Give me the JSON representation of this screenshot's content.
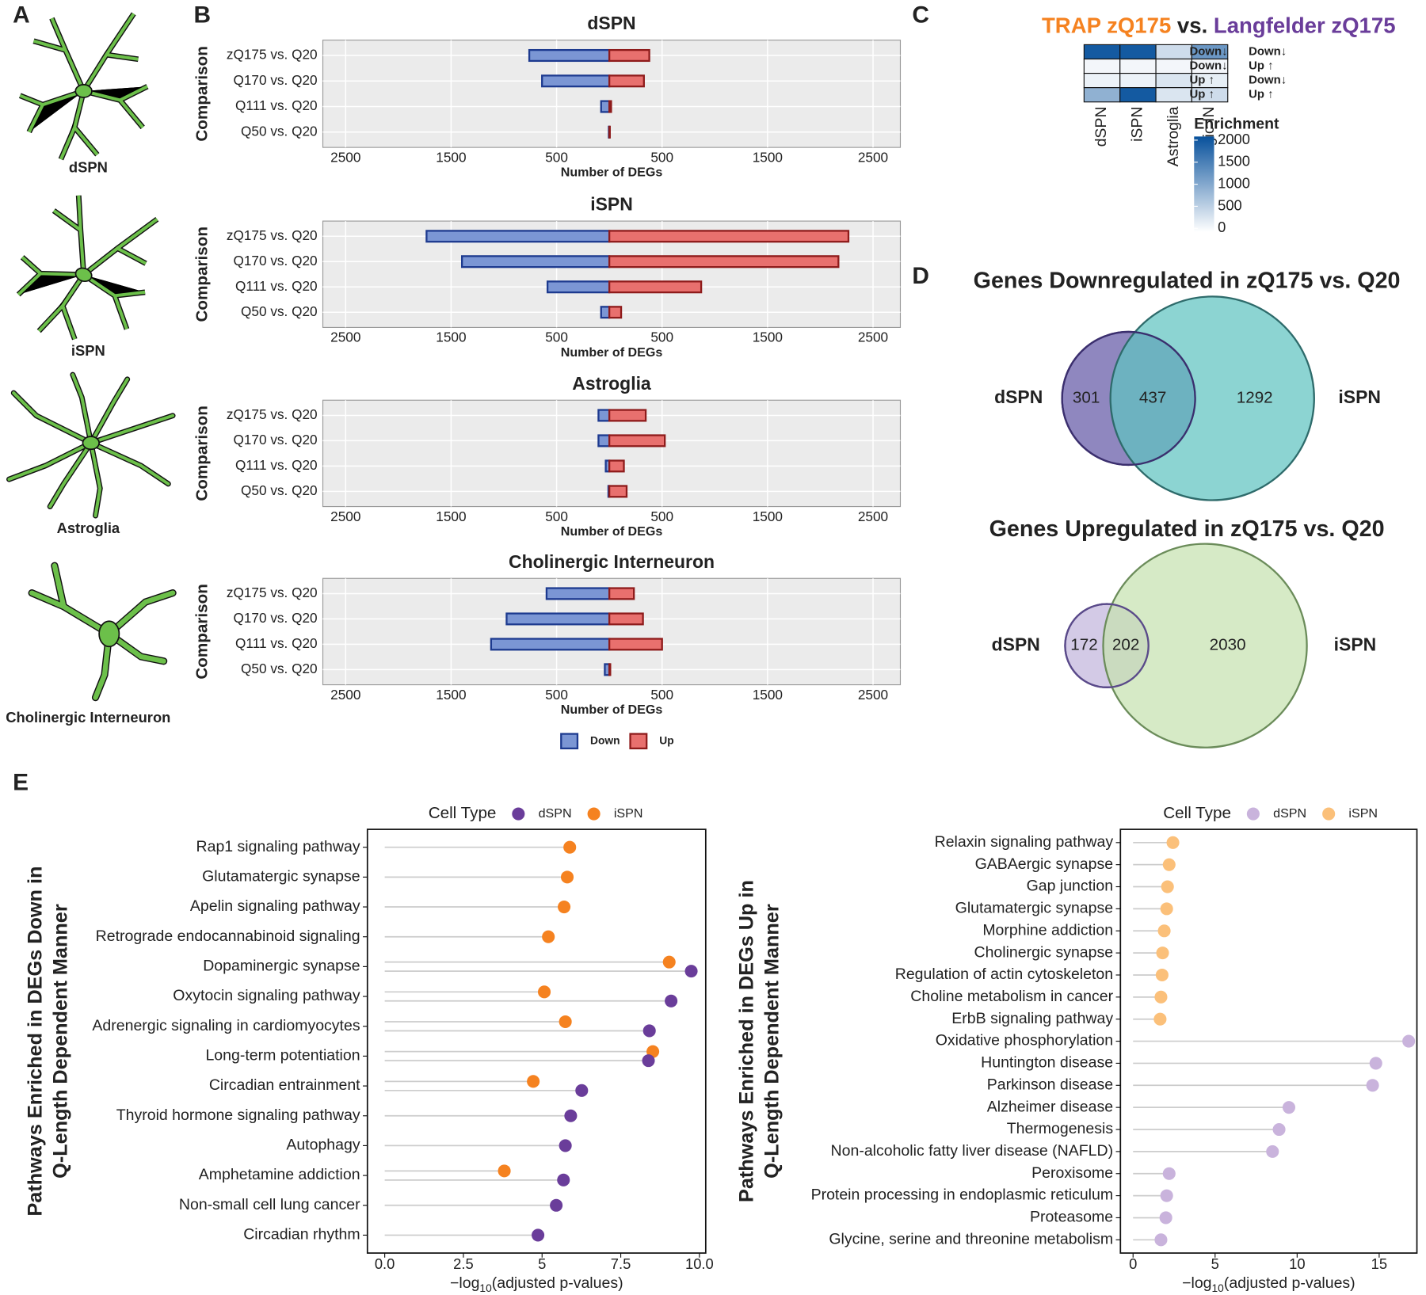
{
  "panel_letters": [
    "A",
    "B",
    "C",
    "D",
    "E"
  ],
  "cell_drawings": {
    "labels": [
      "dSPN",
      "iSPN",
      "Astroglia",
      "Cholinergic Interneuron"
    ]
  },
  "chart_data": [
    {
      "type": "bar",
      "orientation": "horizontal",
      "title": "dSPN",
      "ylabel": "Comparison",
      "xlabel": "Number of DEGs",
      "categories": [
        "zQ175 vs. Q20",
        "Q170 vs. Q20",
        "Q111 vs. Q20",
        "Q50 vs. Q20"
      ],
      "series": [
        {
          "color": "#7b96d4",
          "edge": "#1d3a8f",
          "values": [
            -759,
            -638,
            -78,
            -5
          ]
        },
        {
          "color": "#e8706e",
          "edge": "#8e1b1b",
          "values": [
            379,
            328,
            17,
            5
          ]
        }
      ],
      "xlim": [
        -2716,
        2759
      ],
      "xticks": [
        {
          "value": -2500,
          "label": "2500"
        },
        {
          "value": -1500,
          "label": "1500"
        },
        {
          "value": -500,
          "label": "500"
        },
        500,
        1500,
        2500
      ]
    },
    {
      "type": "bar",
      "orientation": "horizontal",
      "title": "iSPN",
      "ylabel": "Comparison",
      "xlabel": "Number of DEGs",
      "categories": [
        "zQ175 vs. Q20",
        "Q170 vs. Q20",
        "Q111 vs. Q20",
        "Q50 vs. Q20"
      ],
      "series": [
        {
          "color": "#7b96d4",
          "edge": "#1d3a8f",
          "values": [
            -1733,
            -1397,
            -586,
            -78
          ]
        },
        {
          "color": "#e8706e",
          "edge": "#8e1b1b",
          "values": [
            2267,
            2172,
            871,
            112
          ]
        }
      ],
      "xlim": [
        -2716,
        2759
      ],
      "xticks": [
        {
          "value": -2500,
          "label": "2500"
        },
        {
          "value": -1500,
          "label": "1500"
        },
        {
          "value": -500,
          "label": "500"
        },
        500,
        1500,
        2500
      ]
    },
    {
      "type": "bar",
      "orientation": "horizontal",
      "title": "Astroglia",
      "ylabel": "Comparison",
      "xlabel": "Number of DEGs",
      "categories": [
        "zQ175 vs. Q20",
        "Q170 vs. Q20",
        "Q111 vs. Q20",
        "Q50 vs. Q20"
      ],
      "series": [
        {
          "color": "#7b96d4",
          "edge": "#1d3a8f",
          "values": [
            -103,
            -103,
            -34,
            -9
          ]
        },
        {
          "color": "#e8706e",
          "edge": "#8e1b1b",
          "values": [
            345,
            526,
            138,
            164
          ]
        }
      ],
      "xlim": [
        -2716,
        2759
      ],
      "xticks": [
        {
          "value": -2500,
          "label": "2500"
        },
        {
          "value": -1500,
          "label": "1500"
        },
        {
          "value": -500,
          "label": "500"
        },
        500,
        1500,
        2500
      ]
    },
    {
      "type": "bar",
      "orientation": "horizontal",
      "title": "Cholinergic Interneuron",
      "ylabel": "Comparison",
      "xlabel": "Number of DEGs",
      "categories": [
        "zQ175 vs. Q20",
        "Q170 vs. Q20",
        "Q111 vs. Q20",
        "Q50 vs. Q20"
      ],
      "series": [
        {
          "name": "Down",
          "color": "#7b96d4",
          "edge": "#1d3a8f",
          "values": [
            -595,
            -974,
            -1121,
            -43
          ]
        },
        {
          "name": "Up",
          "color": "#e8706e",
          "edge": "#8e1b1b",
          "values": [
            233,
            319,
            500,
            9
          ]
        }
      ],
      "xlim": [
        -2716,
        2759
      ],
      "xticks": [
        {
          "value": -2500,
          "label": "2500"
        },
        {
          "value": -1500,
          "label": "1500"
        },
        {
          "value": -500,
          "label": "500"
        },
        500,
        1500,
        2500
      ]
    },
    {
      "type": "heatmap",
      "title_parts": [
        {
          "text": "TRAP zQ175",
          "color": "#f58220"
        },
        {
          "text": " vs. ",
          "color": "#222222"
        },
        {
          "text": "Langfelder zQ175",
          "color": "#6a3d9a"
        }
      ],
      "row_labels_left": [
        "Down↓",
        "Down↓",
        "Up ↑",
        "Up ↑"
      ],
      "row_left_color": "#f58220",
      "row_labels_right": [
        "Down↓",
        "Up ↑",
        "Down↓",
        "Up ↑"
      ],
      "row_right_color": "#6a3d9a",
      "columns": [
        "dSPN",
        "iSPN",
        "Astroglia",
        "Cholinergic IN"
      ],
      "values": [
        [
          1900,
          1900,
          400,
          1200
        ],
        [
          100,
          100,
          100,
          100
        ],
        [
          150,
          150,
          300,
          200
        ],
        [
          900,
          1900,
          300,
          400
        ]
      ],
      "colorbar_title": "Enrichment",
      "clim": [
        0,
        2000
      ],
      "cticks": [
        0,
        500,
        1000,
        1500,
        2000
      ],
      "colors": [
        "#ffffff",
        "#08519c"
      ]
    },
    {
      "type": "venn",
      "title": "Genes Downregulated in zQ175 vs. Q20",
      "sets": [
        "dSPN",
        "iSPN"
      ],
      "values": [
        301,
        437,
        1292
      ],
      "colors": [
        "#8f87bf",
        "#5fc4c1"
      ],
      "edges": [
        "#3b2f6e",
        "#2e6b6b"
      ]
    },
    {
      "type": "venn",
      "title": "Genes Upregulated in zQ175 vs. Q20",
      "sets": [
        "dSPN",
        "iSPN"
      ],
      "values": [
        172,
        202,
        2030
      ],
      "colors": [
        "#d3cae6",
        "#c6e2b0"
      ],
      "edges": [
        "#5a4a8a",
        "#6b8c5a"
      ]
    },
    {
      "type": "lollipop",
      "ylabel_lines": [
        "Pathways Enriched in DEGs Down in",
        "Q-Length Dependent Manner"
      ],
      "xlabel_parts": [
        "−log",
        "10",
        "(adjusted p-values)"
      ],
      "legend_title": "Cell Type",
      "categories": [
        "Rap1 signaling pathway",
        "Glutamatergic synapse",
        "Apelin signaling pathway",
        "Retrograde endocannabinoid signaling",
        "Dopaminergic synapse",
        "Oxytocin signaling pathway",
        "Adrenergic signaling in cardiomyocytes",
        "Long-term potentiation",
        "Circadian entrainment",
        "Thyroid hormone signaling pathway",
        "Autophagy",
        "Amphetamine addiction",
        "Non-small cell lung cancer",
        "Circadian rhythm"
      ],
      "series": [
        {
          "name": "dSPN",
          "color": "#6a3d9a",
          "values": [
            null,
            null,
            null,
            null,
            9.74,
            9.1,
            8.41,
            8.38,
            6.26,
            5.91,
            5.74,
            5.68,
            5.45,
            4.87
          ]
        },
        {
          "name": "iSPN",
          "color": "#f58220",
          "values": [
            5.88,
            5.8,
            5.7,
            5.2,
            9.04,
            5.07,
            5.74,
            8.52,
            4.72,
            null,
            null,
            3.8,
            null,
            null
          ]
        }
      ],
      "xlim": [
        -0.55,
        10.2
      ],
      "xticks": [
        {
          "value": 0,
          "label": "0.0"
        },
        2.5,
        5,
        7.5,
        {
          "value": 10,
          "label": "10.0"
        }
      ]
    },
    {
      "type": "lollipop",
      "ylabel_lines": [
        "Pathways Enriched in DEGs Up in",
        "Q-Length Dependent Manner"
      ],
      "xlabel_parts": [
        "−log",
        "10",
        "(adjusted p-values)"
      ],
      "legend_title": "Cell Type",
      "categories": [
        "Relaxin signaling pathway",
        "GABAergic synapse",
        "Gap junction",
        "Glutamatergic synapse",
        "Morphine addiction",
        "Cholinergic synapse",
        "Regulation of actin cytoskeleton",
        "Choline metabolism in cancer",
        "ErbB signaling pathway",
        "Oxidative phosphorylation",
        "Huntington disease",
        "Parkinson disease",
        "Alzheimer disease",
        "Thermogenesis",
        "Non-alcoholic fatty liver disease (NAFLD)",
        "Peroxisome",
        "Protein processing in endoplasmic reticulum",
        "Proteasome",
        "Glycine, serine and threonine metabolism"
      ],
      "series": [
        {
          "name": "dSPN",
          "color": "#c9b3dc",
          "values": [
            null,
            null,
            null,
            null,
            null,
            null,
            null,
            null,
            null,
            16.8,
            14.8,
            14.6,
            9.5,
            8.9,
            8.5,
            2.2,
            2.05,
            2.0,
            1.7
          ]
        },
        {
          "name": "iSPN",
          "color": "#fbc07a",
          "values": [
            2.43,
            2.2,
            2.1,
            2.05,
            1.9,
            1.8,
            1.77,
            1.7,
            1.65,
            null,
            null,
            null,
            null,
            null,
            null,
            null,
            null,
            null,
            null
          ]
        }
      ],
      "xlim": [
        -0.77,
        17.3
      ],
      "xticks": [
        0,
        5,
        10,
        15
      ]
    }
  ]
}
